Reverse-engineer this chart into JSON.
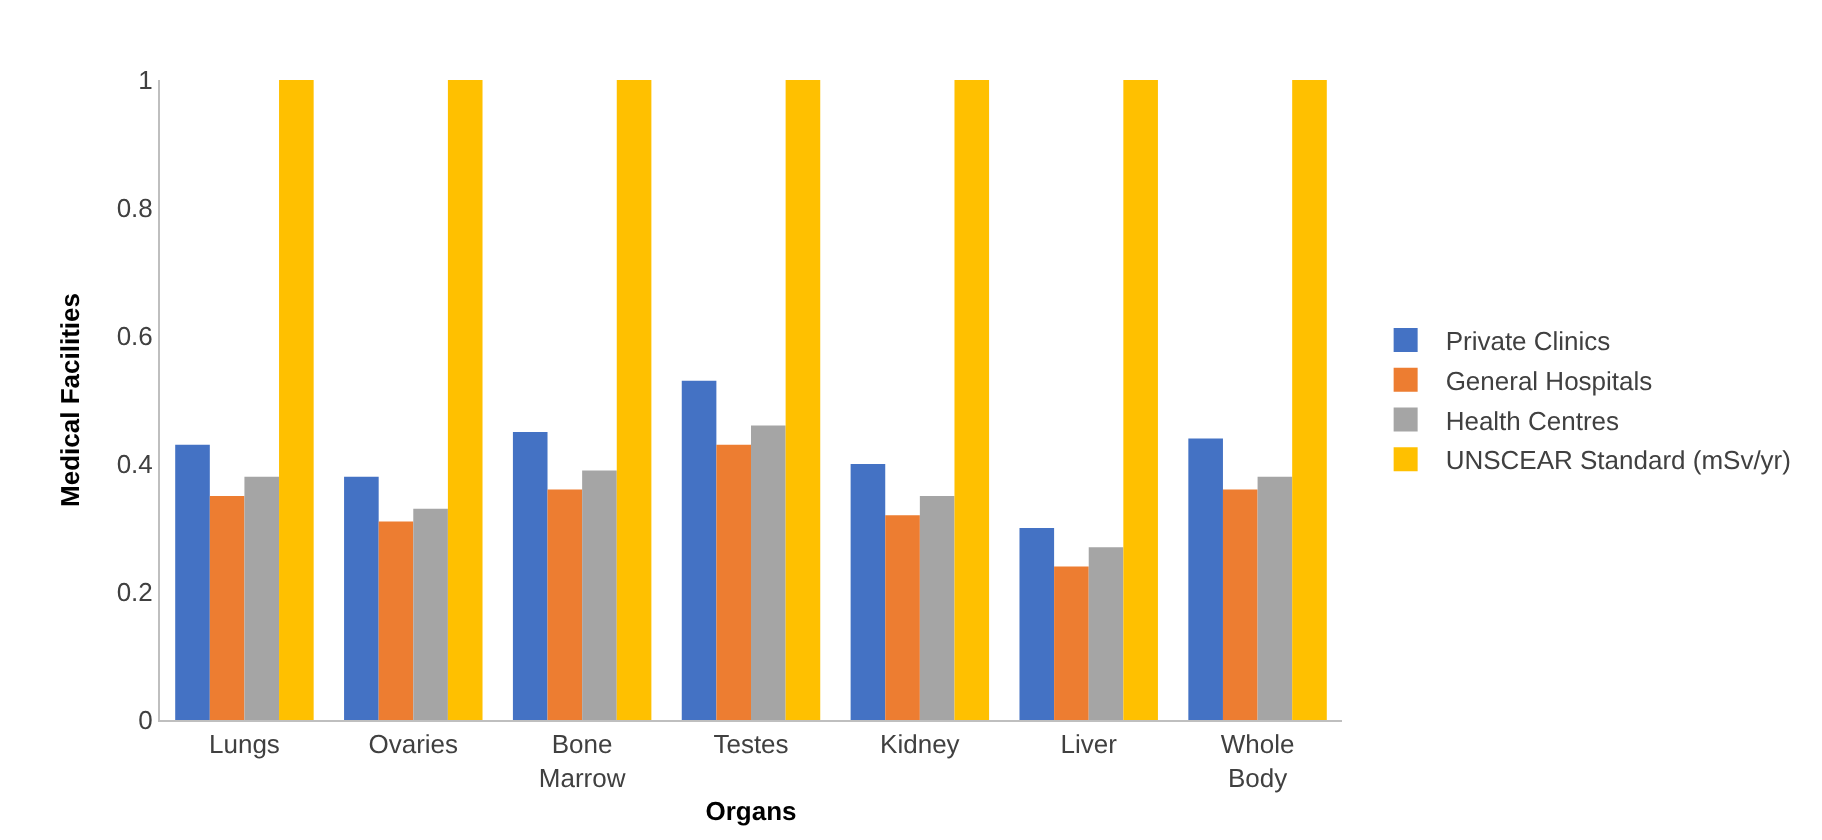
{
  "chart_data": {
    "type": "bar",
    "xlabel": "Organs",
    "ylabel": "Medical Facilities",
    "categories": [
      "Lungs",
      "Ovaries",
      "Bone Marrow",
      "Testes",
      "Kidney",
      "Liver",
      "Whole Body"
    ],
    "series": [
      {
        "name": "Private Clinics",
        "color": "#4472c4",
        "values": [
          0.43,
          0.38,
          0.45,
          0.53,
          0.4,
          0.3,
          0.44
        ]
      },
      {
        "name": "General Hospitals",
        "color": "#ed7d31",
        "values": [
          0.35,
          0.31,
          0.36,
          0.43,
          0.32,
          0.24,
          0.36
        ]
      },
      {
        "name": "Health Centres",
        "color": "#a5a5a5",
        "values": [
          0.38,
          0.33,
          0.39,
          0.46,
          0.35,
          0.27,
          0.38
        ]
      },
      {
        "name": "UNSCEAR Standard (mSv/yr)",
        "color": "#ffc000",
        "values": [
          1,
          1,
          1,
          1,
          1,
          1,
          1
        ]
      }
    ],
    "ylim": [
      0,
      1
    ],
    "yticks": [
      0,
      0.2,
      0.4,
      0.6,
      0.8,
      1
    ],
    "grid": false,
    "legend": "right"
  }
}
